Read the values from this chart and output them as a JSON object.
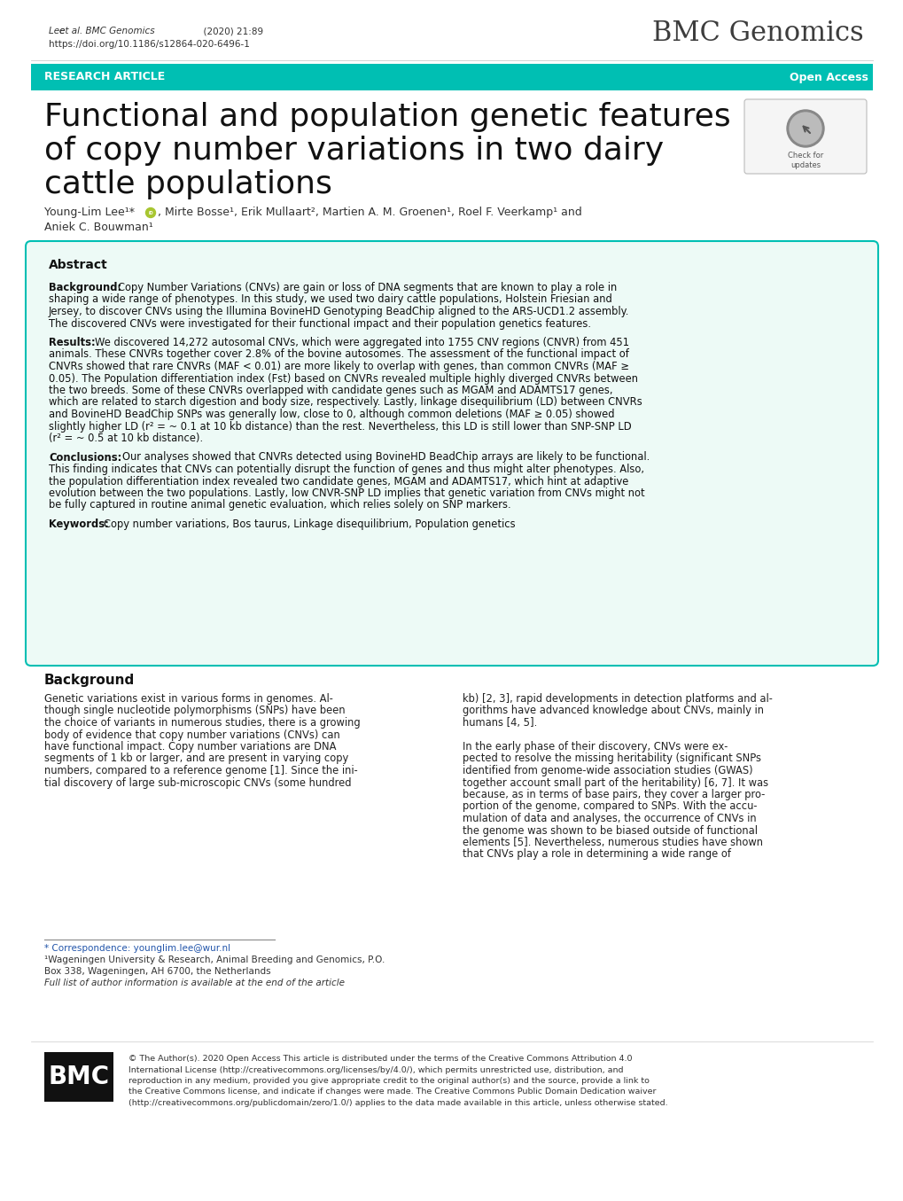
{
  "bg_color": "#ffffff",
  "teal_color": "#00BFB3",
  "journal_name": "BMC Genomics",
  "banner_text_left": "RESEARCH ARTICLE",
  "banner_text_right": "Open Access",
  "abstract_title": "Abstract",
  "background_label": "Background:",
  "results_label": "Results:",
  "conclusions_label": "Conclusions:",
  "keywords_label": "Keywords:",
  "background_section_title": "Background",
  "footnote_corr": "* Correspondence: younglim.lee@wur.nl",
  "footnote_inst": "¹Wageningen University & Research, Animal Breeding and Genomics, P.O.",
  "footnote_inst2": "Box 338, Wageningen, AH 6700, the Netherlands",
  "footnote_full": "Full list of author information is available at the end of the article",
  "bmc_logo_text": "BMC"
}
